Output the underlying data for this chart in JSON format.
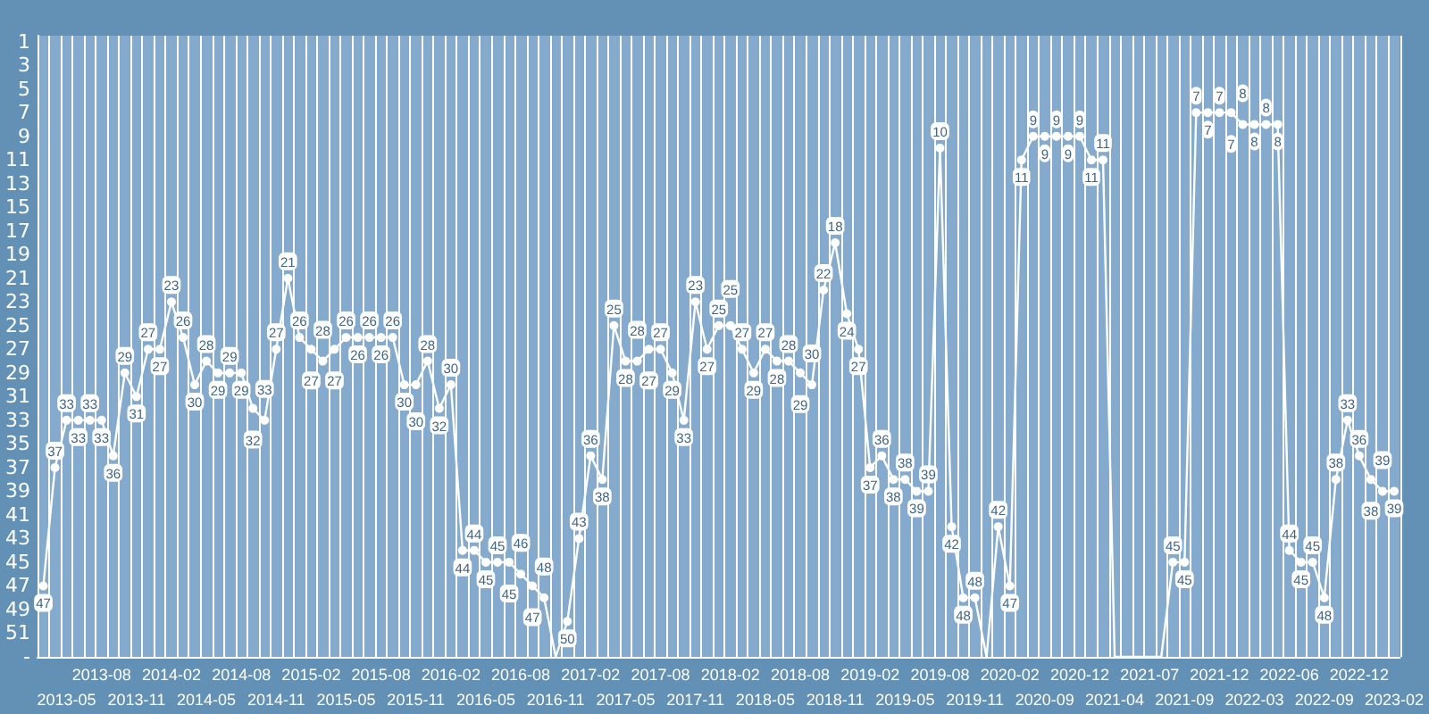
{
  "chart_data": {
    "type": "line",
    "categories": [
      null,
      null,
      "2013-05",
      null,
      null,
      "2013-08",
      null,
      null,
      "2013-11",
      null,
      null,
      "2014-02",
      null,
      null,
      "2014-05",
      null,
      null,
      "2014-08",
      null,
      null,
      "2014-11",
      null,
      null,
      "2015-02",
      null,
      null,
      "2015-05",
      null,
      null,
      "2015-08",
      null,
      null,
      "2015-11",
      null,
      null,
      "2016-02",
      null,
      null,
      "2016-05",
      null,
      null,
      "2016-08",
      null,
      null,
      "2016-11",
      null,
      null,
      "2017-02",
      null,
      null,
      "2017-05",
      null,
      null,
      "2017-08",
      null,
      null,
      "2017-11",
      null,
      null,
      "2018-02",
      null,
      null,
      "2018-05",
      null,
      null,
      "2018-08",
      null,
      null,
      "2018-11",
      null,
      null,
      "2019-02",
      null,
      null,
      "2019-05",
      null,
      null,
      "2019-08",
      null,
      null,
      "2019-11",
      null,
      null,
      "2020-02",
      null,
      null,
      "2020-09",
      null,
      null,
      "2020-12",
      null,
      null,
      "2021-04",
      null,
      null,
      "2021-07",
      null,
      null,
      "2021-09",
      null,
      null,
      "2021-12",
      null,
      null,
      "2022-03",
      null,
      null,
      "2022-06",
      null,
      null,
      "2022-09",
      null,
      null,
      "2022-12",
      null,
      null,
      "2023-02"
    ],
    "series": [
      {
        "color": "#ffffff",
        "values": [
          47,
          37,
          33,
          33,
          33,
          33,
          36,
          29,
          31,
          27,
          27,
          23,
          26,
          30,
          28,
          29,
          29,
          29,
          32,
          33,
          27,
          21,
          26,
          27,
          28,
          27,
          26,
          26,
          26,
          26,
          26,
          30,
          30,
          28,
          32,
          30,
          44,
          44,
          45,
          45,
          45,
          46,
          47,
          48,
          53,
          50,
          43,
          36,
          38,
          25,
          28,
          28,
          27,
          27,
          29,
          33,
          23,
          27,
          25,
          25,
          27,
          29,
          27,
          28,
          28,
          29,
          30,
          22,
          18,
          24,
          27,
          37,
          36,
          38,
          38,
          39,
          39,
          10,
          42,
          48,
          48,
          53,
          42,
          47,
          11,
          9,
          9,
          9,
          9,
          9,
          11,
          11,
          53,
          53,
          53,
          53,
          53,
          45,
          45,
          7,
          7,
          7,
          7,
          8,
          8,
          8,
          8,
          44,
          45,
          45,
          48,
          38,
          33,
          36,
          38,
          39,
          39
        ],
        "value_labels": [
          "47",
          "37",
          "33",
          "33",
          "33",
          "33",
          "36",
          "29",
          "31",
          "27",
          "27",
          "23",
          "26",
          "30",
          "28",
          "29",
          "29",
          "29",
          "32",
          "33",
          "27",
          "21",
          "26",
          "27",
          "28",
          "27",
          "26",
          "26",
          "26",
          "26",
          "26",
          "30",
          "30",
          "28",
          "32",
          "30",
          "44",
          "44",
          "45",
          "45",
          "45",
          "46",
          "47",
          "48",
          null,
          "50",
          "43",
          "36",
          "38",
          "25",
          "28",
          "28",
          "27",
          "27",
          "29",
          "33",
          "23",
          "27",
          "25",
          "25",
          "27",
          "29",
          "27",
          "28",
          "28",
          "29",
          "30",
          "22",
          "18",
          "24",
          "27",
          "37",
          "36",
          "38",
          "38",
          "39",
          "39",
          "10",
          "42",
          "48",
          "48",
          null,
          "42",
          "47",
          "11",
          "9",
          "9",
          "9",
          "9",
          "9",
          "11",
          "11",
          null,
          null,
          null,
          null,
          null,
          "45",
          "45",
          "7",
          "7",
          "7",
          "7",
          "8",
          "8",
          "8",
          "8",
          "44",
          "45",
          "45",
          "48",
          "38",
          "33",
          "36",
          "38",
          "39",
          "39"
        ]
      }
    ],
    "ylim": [
      53,
      0.5
    ],
    "yticks": [
      1,
      3,
      5,
      7,
      9,
      11,
      13,
      15,
      17,
      19,
      21,
      23,
      25,
      27,
      29,
      31,
      33,
      35,
      37,
      39,
      41,
      43,
      45,
      47,
      49,
      51,
      {
        "value": 53,
        "label": "-"
      }
    ],
    "grid": "x",
    "marker": "circle",
    "line_style": "solid"
  }
}
